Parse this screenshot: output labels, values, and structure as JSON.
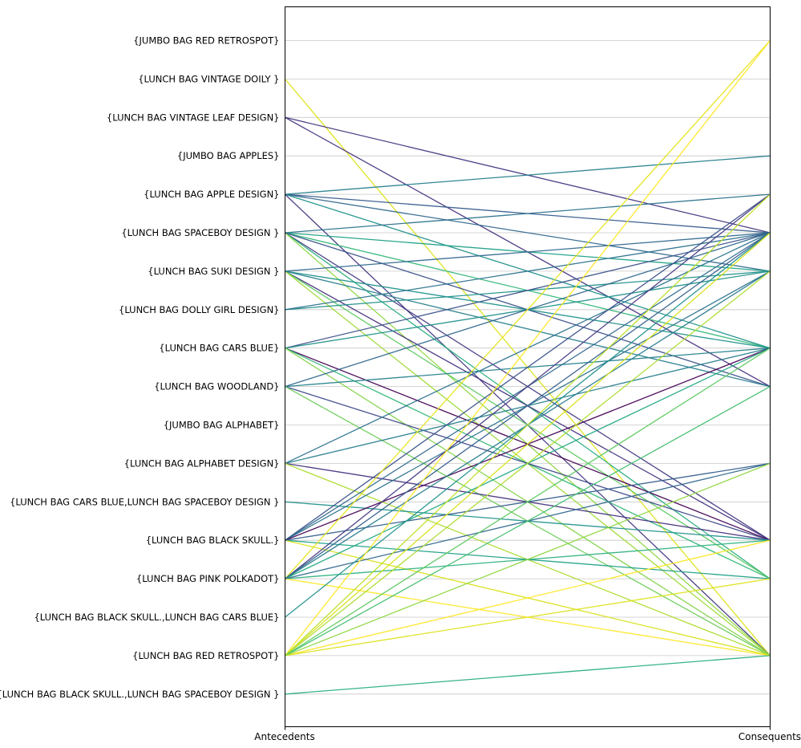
{
  "chart_data": {
    "type": "line",
    "subtype": "parallel-coordinates-association-rules",
    "title": "",
    "xlabel_left": "Antecedents",
    "xlabel_right": "Consequents",
    "grid": true,
    "colormap": "viridis",
    "categories": [
      "{JUMBO BAG RED RETROSPOT}",
      "{LUNCH BAG VINTAGE DOILY }",
      "{LUNCH BAG VINTAGE LEAF DESIGN}",
      "{JUMBO BAG APPLES}",
      "{LUNCH BAG APPLE DESIGN}",
      "{LUNCH BAG SPACEBOY DESIGN }",
      "{LUNCH BAG SUKI DESIGN }",
      "{LUNCH BAG DOLLY GIRL DESIGN}",
      "{LUNCH BAG CARS BLUE}",
      "{LUNCH BAG WOODLAND}",
      "{JUMBO BAG ALPHABET}",
      "{LUNCH BAG ALPHABET DESIGN}",
      "{LUNCH BAG CARS BLUE,LUNCH BAG SPACEBOY DESIGN }",
      "{LUNCH BAG  BLACK SKULL.}",
      "{LUNCH BAG PINK POLKADOT}",
      "{LUNCH BAG  BLACK SKULL.,LUNCH BAG CARS BLUE}",
      "{LUNCH BAG RED RETROSPOT}",
      "{LUNCH BAG  BLACK SKULL.,LUNCH BAG SPACEBOY DESIGN }"
    ],
    "edges_format": [
      "antecedent_index",
      "consequent_index",
      "color"
    ],
    "edges": [
      [
        1,
        16,
        "#dce319"
      ],
      [
        2,
        9,
        "#46327e"
      ],
      [
        2,
        5,
        "#453781"
      ],
      [
        4,
        3,
        "#277f8e"
      ],
      [
        4,
        5,
        "#365c8d"
      ],
      [
        4,
        6,
        "#31688e"
      ],
      [
        4,
        8,
        "#21918c"
      ],
      [
        4,
        16,
        "#443983"
      ],
      [
        5,
        4,
        "#2c728e"
      ],
      [
        5,
        6,
        "#1fa187"
      ],
      [
        5,
        8,
        "#35b779"
      ],
      [
        5,
        13,
        "#443983"
      ],
      [
        5,
        14,
        "#28ae80"
      ],
      [
        5,
        16,
        "#90d743"
      ],
      [
        5,
        9,
        "#3b528b"
      ],
      [
        6,
        5,
        "#31688e"
      ],
      [
        6,
        8,
        "#21918c"
      ],
      [
        6,
        13,
        "#46327e"
      ],
      [
        6,
        14,
        "#5ec962"
      ],
      [
        6,
        16,
        "#a0da39"
      ],
      [
        6,
        9,
        "#27808e"
      ],
      [
        7,
        6,
        "#21918c"
      ],
      [
        7,
        5,
        "#2c728e"
      ],
      [
        8,
        5,
        "#3b528b"
      ],
      [
        8,
        6,
        "#21918c"
      ],
      [
        8,
        13,
        "#440154"
      ],
      [
        8,
        14,
        "#35b779"
      ],
      [
        8,
        16,
        "#84d44b"
      ],
      [
        9,
        5,
        "#31688e"
      ],
      [
        9,
        8,
        "#26828e"
      ],
      [
        9,
        13,
        "#3e4a89"
      ],
      [
        9,
        16,
        "#6ece58"
      ],
      [
        11,
        5,
        "#2c728e"
      ],
      [
        11,
        8,
        "#277f8e"
      ],
      [
        11,
        13,
        "#46327e"
      ],
      [
        11,
        16,
        "#addc30"
      ],
      [
        12,
        13,
        "#21918c"
      ],
      [
        13,
        4,
        "#3b528b"
      ],
      [
        13,
        5,
        "#31688e"
      ],
      [
        13,
        6,
        "#2c728e"
      ],
      [
        13,
        8,
        "#440154"
      ],
      [
        13,
        14,
        "#1fa187"
      ],
      [
        13,
        16,
        "#d8e219"
      ],
      [
        13,
        11,
        "#355f8d"
      ],
      [
        14,
        0,
        "#e5e419"
      ],
      [
        14,
        4,
        "#443983"
      ],
      [
        14,
        5,
        "#35608d"
      ],
      [
        14,
        6,
        "#287c8e"
      ],
      [
        14,
        8,
        "#22a884"
      ],
      [
        14,
        13,
        "#2db27d"
      ],
      [
        14,
        16,
        "#fde725"
      ],
      [
        14,
        11,
        "#31688e"
      ],
      [
        15,
        5,
        "#21918c"
      ],
      [
        16,
        0,
        "#fde725"
      ],
      [
        16,
        4,
        "#bddf26"
      ],
      [
        16,
        5,
        "#d8e219"
      ],
      [
        16,
        6,
        "#addc30"
      ],
      [
        16,
        8,
        "#5ec962"
      ],
      [
        16,
        9,
        "#44bf70"
      ],
      [
        16,
        13,
        "#fde725"
      ],
      [
        16,
        14,
        "#dce319"
      ],
      [
        16,
        11,
        "#90d743"
      ],
      [
        17,
        16,
        "#2ab07f"
      ]
    ],
    "style": {
      "grid_color": "#c8c8c8",
      "border_color": "#000000",
      "background": "#ffffff"
    }
  }
}
